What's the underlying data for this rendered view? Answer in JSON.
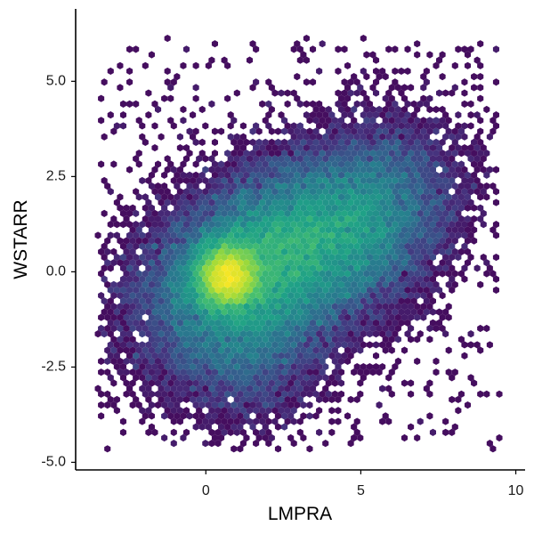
{
  "chart_data": {
    "type": "heatmap",
    "subtype": "hexbin",
    "title": "",
    "xlabel": "LMPRA",
    "ylabel": "WSTARR",
    "xlim": [
      -4.2,
      10.3
    ],
    "ylim": [
      -5.2,
      6.9
    ],
    "x_ticks": [
      0,
      5,
      10
    ],
    "x_tick_labels": [
      "0",
      "5",
      "10"
    ],
    "y_ticks": [
      -5.0,
      -2.5,
      0.0,
      2.5,
      5.0
    ],
    "y_tick_labels": [
      "-5.0",
      "-2.5",
      "0.0",
      "2.5",
      "5.0"
    ],
    "grid": false,
    "legend": "none",
    "colormap": "viridis",
    "colors": [
      "#440154",
      "#46327e",
      "#365c8d",
      "#277f8e",
      "#1fa187",
      "#4ac16d",
      "#a0da39",
      "#fde725"
    ],
    "density_mode": {
      "x": 0.7,
      "y": -0.1
    },
    "data_extent": {
      "x": [
        -3.4,
        9.5
      ],
      "y": [
        -4.6,
        6.1
      ]
    },
    "correlation": "positive"
  }
}
